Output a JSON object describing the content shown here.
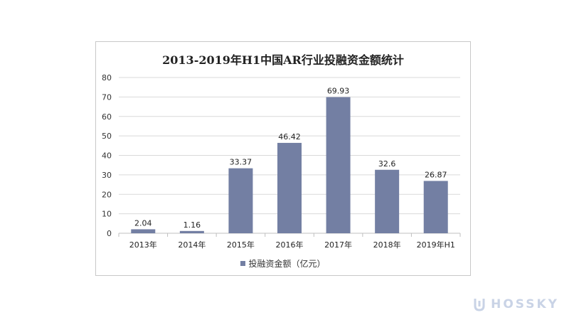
{
  "chart_data": {
    "type": "bar",
    "title": "2013-2019年H1中国AR行业投融资金额统计",
    "categories": [
      "2013年",
      "2014年",
      "2015年",
      "2016年",
      "2017年",
      "2018年",
      "2019年H1"
    ],
    "series": [
      {
        "name": "投融资金额（亿元）",
        "values": [
          2.04,
          1.16,
          33.37,
          46.42,
          69.93,
          32.6,
          26.87
        ]
      }
    ],
    "data_labels": [
      "2.04",
      "1.16",
      "33.37",
      "46.42",
      "69.93",
      "32.6",
      "26.87"
    ],
    "y_ticks": [
      0,
      10,
      20,
      30,
      40,
      50,
      60,
      70,
      80
    ],
    "ylim": [
      0,
      80
    ],
    "grid": true,
    "legend_position": "bottom",
    "colors": {
      "bar": "#737fa3",
      "grid": "#d9d9d9",
      "axis": "#bfbfbf"
    }
  },
  "watermark": {
    "text": "HOSSKY"
  }
}
